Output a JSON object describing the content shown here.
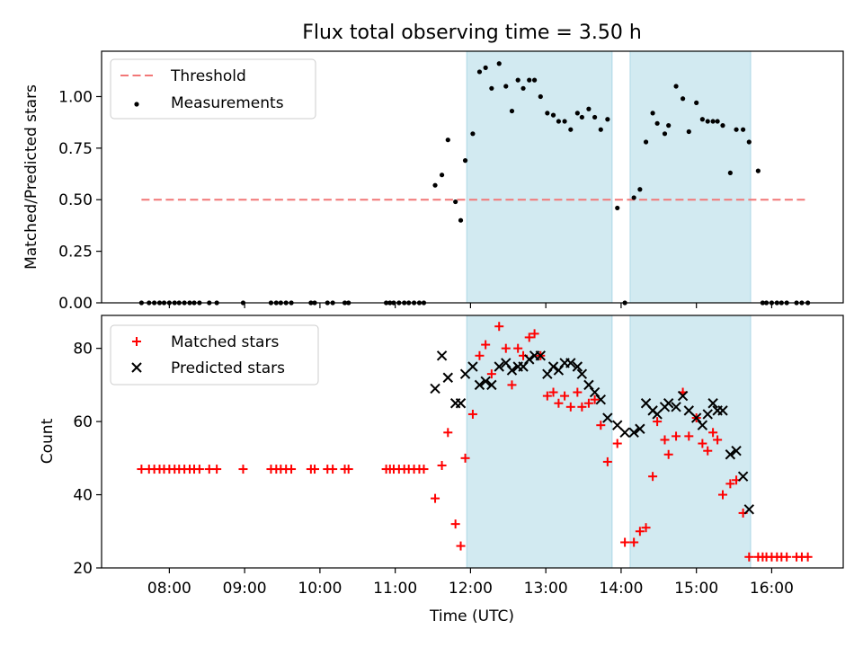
{
  "title": "Flux total observing time = 3.50 h",
  "colors": {
    "threshold": "#f27777",
    "measurement": "#000000",
    "matched": "#ff0000",
    "predicted": "#000000",
    "span_fill": "#add8e6"
  },
  "chart_data": [
    {
      "type": "scatter",
      "ylabel": "Matched/Predicted stars",
      "xlabel": "",
      "ylim": [
        0,
        1.22
      ],
      "yticks": [
        0.0,
        0.25,
        0.5,
        0.75,
        1.0
      ],
      "ytick_labels": [
        "0.00",
        "0.25",
        "0.50",
        "0.75",
        "1.00"
      ],
      "legend": {
        "position": "top-left",
        "entries": [
          "Threshold",
          "Measurements"
        ]
      },
      "threshold": {
        "name": "Threshold",
        "x": [
          7.63,
          16.48
        ],
        "y": 0.5
      },
      "observing_spans": [
        [
          11.95,
          13.88
        ],
        [
          14.12,
          15.72
        ]
      ],
      "series": [
        {
          "name": "Measurements",
          "x": [
            7.63,
            7.73,
            7.8,
            7.87,
            7.93,
            8.0,
            8.07,
            8.13,
            8.2,
            8.27,
            8.33,
            8.4,
            8.53,
            8.63,
            8.98,
            9.35,
            9.42,
            9.48,
            9.55,
            9.62,
            9.88,
            9.93,
            10.1,
            10.17,
            10.33,
            10.38,
            10.88,
            10.93,
            10.98,
            11.05,
            11.12,
            11.18,
            11.25,
            11.32,
            11.38,
            11.53,
            11.62,
            11.7,
            11.8,
            11.87,
            11.93,
            12.03,
            12.12,
            12.2,
            12.28,
            12.38,
            12.47,
            12.55,
            12.63,
            12.7,
            12.78,
            12.85,
            12.93,
            13.02,
            13.1,
            13.17,
            13.25,
            13.33,
            13.42,
            13.48,
            13.57,
            13.65,
            13.73,
            13.82,
            13.95,
            14.05,
            14.17,
            14.25,
            14.33,
            14.42,
            14.48,
            14.58,
            14.63,
            14.73,
            14.82,
            14.9,
            15.0,
            15.08,
            15.15,
            15.22,
            15.28,
            15.35,
            15.45,
            15.53,
            15.62,
            15.7,
            15.82,
            15.88,
            15.93,
            16.0,
            16.07,
            16.13,
            16.2,
            16.33,
            16.4,
            16.48
          ],
          "y": [
            0,
            0,
            0,
            0,
            0,
            0,
            0,
            0,
            0,
            0,
            0,
            0,
            0,
            0,
            0,
            0,
            0,
            0,
            0,
            0,
            0,
            0,
            0,
            0,
            0,
            0,
            0,
            0,
            0,
            0,
            0,
            0,
            0,
            0,
            0,
            0.57,
            0.62,
            0.79,
            0.49,
            0.4,
            0.69,
            0.82,
            1.12,
            1.14,
            1.04,
            1.16,
            1.05,
            0.93,
            1.08,
            1.04,
            1.08,
            1.08,
            1.0,
            0.92,
            0.91,
            0.88,
            0.88,
            0.84,
            0.92,
            0.9,
            0.94,
            0.9,
            0.84,
            0.89,
            0.46,
            0,
            0.51,
            0.55,
            0.78,
            0.92,
            0.87,
            0.82,
            0.86,
            1.05,
            0.99,
            0.83,
            0.97,
            0.89,
            0.88,
            0.88,
            0.88,
            0.86,
            0.63,
            0.84,
            0.84,
            0.78,
            0.64,
            0,
            0,
            0,
            0,
            0,
            0,
            0,
            0,
            0
          ]
        }
      ]
    },
    {
      "type": "scatter",
      "ylabel": "Count",
      "xlabel": "Time (UTC)",
      "xlim": [
        7.1,
        16.95
      ],
      "ylim": [
        20,
        89
      ],
      "yticks": [
        20,
        40,
        60,
        80
      ],
      "ytick_labels": [
        "20",
        "40",
        "60",
        "80"
      ],
      "xticks": [
        8,
        9,
        10,
        11,
        12,
        13,
        14,
        15,
        16
      ],
      "xtick_labels": [
        "08:00",
        "09:00",
        "10:00",
        "11:00",
        "12:00",
        "13:00",
        "14:00",
        "15:00",
        "16:00"
      ],
      "legend": {
        "position": "top-left",
        "entries": [
          "Matched stars",
          "Predicted stars"
        ]
      },
      "observing_spans": [
        [
          11.95,
          13.88
        ],
        [
          14.12,
          15.72
        ]
      ],
      "series": [
        {
          "name": "Matched stars",
          "x": [
            7.63,
            7.73,
            7.8,
            7.87,
            7.93,
            8.0,
            8.07,
            8.13,
            8.2,
            8.27,
            8.33,
            8.4,
            8.53,
            8.63,
            8.98,
            9.35,
            9.42,
            9.48,
            9.55,
            9.62,
            9.88,
            9.93,
            10.1,
            10.17,
            10.33,
            10.38,
            10.88,
            10.93,
            10.98,
            11.05,
            11.12,
            11.18,
            11.25,
            11.32,
            11.38,
            11.53,
            11.62,
            11.7,
            11.8,
            11.87,
            11.93,
            12.03,
            12.12,
            12.2,
            12.28,
            12.38,
            12.47,
            12.55,
            12.63,
            12.7,
            12.78,
            12.85,
            12.93,
            13.02,
            13.1,
            13.17,
            13.25,
            13.33,
            13.42,
            13.48,
            13.57,
            13.65,
            13.73,
            13.82,
            13.95,
            14.05,
            14.17,
            14.25,
            14.33,
            14.42,
            14.48,
            14.58,
            14.63,
            14.73,
            14.82,
            14.9,
            15.0,
            15.08,
            15.15,
            15.22,
            15.28,
            15.35,
            15.45,
            15.53,
            15.62,
            15.7,
            15.82,
            15.88,
            15.93,
            16.0,
            16.07,
            16.13,
            16.2,
            16.33,
            16.4,
            16.48
          ],
          "y": [
            47,
            47,
            47,
            47,
            47,
            47,
            47,
            47,
            47,
            47,
            47,
            47,
            47,
            47,
            47,
            47,
            47,
            47,
            47,
            47,
            47,
            47,
            47,
            47,
            47,
            47,
            47,
            47,
            47,
            47,
            47,
            47,
            47,
            47,
            47,
            39,
            48,
            57,
            32,
            26,
            50,
            62,
            78,
            81,
            73,
            86,
            80,
            70,
            80,
            78,
            83,
            84,
            78,
            67,
            68,
            65,
            67,
            64,
            68,
            64,
            65,
            66,
            59,
            49,
            54,
            27,
            27,
            30,
            31,
            45,
            60,
            55,
            51,
            56,
            68,
            56,
            61,
            54,
            52,
            57,
            55,
            40,
            43,
            44,
            35,
            23,
            23,
            23,
            23,
            23,
            23,
            23,
            23,
            23,
            23,
            23
          ]
        },
        {
          "name": "Predicted stars",
          "x": [
            11.53,
            11.62,
            11.7,
            11.8,
            11.87,
            11.93,
            12.03,
            12.12,
            12.2,
            12.28,
            12.38,
            12.47,
            12.55,
            12.63,
            12.7,
            12.78,
            12.85,
            12.93,
            13.02,
            13.1,
            13.17,
            13.25,
            13.33,
            13.42,
            13.48,
            13.57,
            13.65,
            13.73,
            13.82,
            13.95,
            14.05,
            14.17,
            14.25,
            14.33,
            14.42,
            14.48,
            14.58,
            14.63,
            14.73,
            14.82,
            14.9,
            15.0,
            15.08,
            15.15,
            15.22,
            15.28,
            15.35,
            15.45,
            15.53,
            15.62,
            15.7
          ],
          "y": [
            69,
            78,
            72,
            65,
            65,
            73,
            75,
            70,
            71,
            70,
            75,
            76,
            74,
            75,
            75,
            77,
            78,
            78,
            73,
            75,
            74,
            76,
            76,
            75,
            73,
            70,
            68,
            66,
            61,
            59,
            57,
            57,
            58,
            65,
            63,
            62,
            64,
            65,
            64,
            67,
            63,
            61,
            59,
            62,
            65,
            63,
            63,
            51,
            52,
            45,
            36
          ]
        }
      ]
    }
  ]
}
